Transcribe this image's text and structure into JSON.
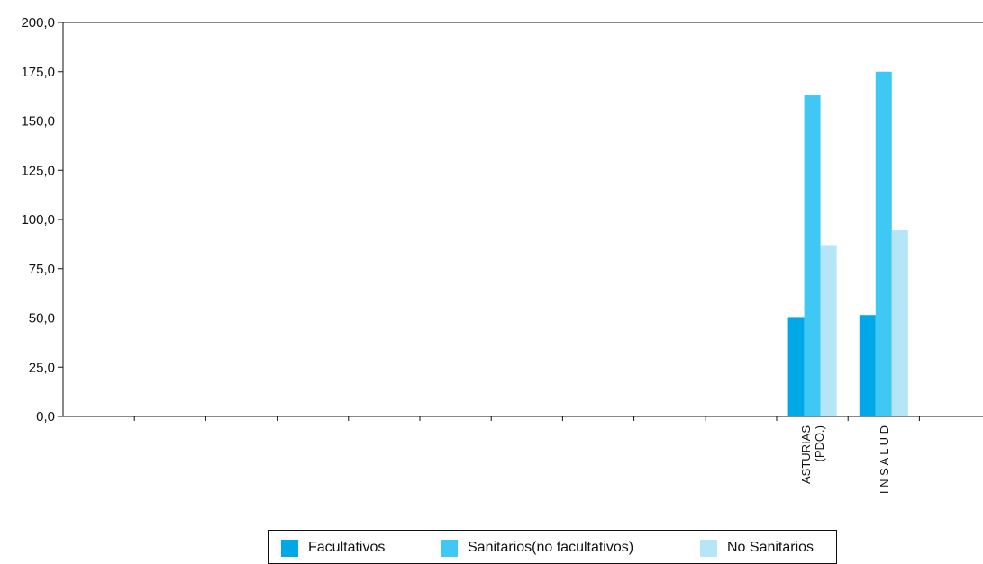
{
  "chart_data": {
    "type": "bar",
    "title": "",
    "xlabel": "",
    "ylabel": "",
    "ylim": [
      0,
      200
    ],
    "yticks": [
      "0,0",
      "25,0",
      "50,0",
      "75,0",
      "100,0",
      "125,0",
      "150,0",
      "175,0",
      "200,0"
    ],
    "grid": false,
    "legend_position": "bottom",
    "categories": [
      {
        "lines": [
          "",
          ""
        ],
        "vertical": false
      },
      {
        "lines": [
          "",
          ""
        ],
        "vertical": false
      },
      {
        "lines": [
          "",
          ""
        ],
        "vertical": false
      },
      {
        "lines": [
          "",
          ""
        ],
        "vertical": false
      },
      {
        "lines": [
          "",
          ""
        ],
        "vertical": false
      },
      {
        "lines": [
          "",
          ""
        ],
        "vertical": false
      },
      {
        "lines": [
          "",
          ""
        ],
        "vertical": false
      },
      {
        "lines": [
          "",
          ""
        ],
        "vertical": false
      },
      {
        "lines": [
          "",
          ""
        ],
        "vertical": false
      },
      {
        "lines": [
          "",
          ""
        ],
        "vertical": false
      },
      {
        "lines": [
          "ASTURIAS",
          "(PDO.)"
        ],
        "vertical": true
      },
      {
        "lines": [
          "I N S A L U D",
          ""
        ],
        "vertical": true
      }
    ],
    "series": [
      {
        "name": "Facultativos",
        "color": "#00a8e8",
        "values": [
          null,
          null,
          null,
          null,
          null,
          null,
          null,
          null,
          null,
          null,
          50.5,
          51.5
        ]
      },
      {
        "name": "Sanitarios(no facultativos)",
        "color": "#40c8f4",
        "values": [
          null,
          null,
          null,
          null,
          null,
          null,
          null,
          null,
          null,
          null,
          163.0,
          175.0
        ]
      },
      {
        "name": "No Sanitarios",
        "color": "#b4e6f8",
        "values": [
          null,
          null,
          null,
          null,
          null,
          null,
          null,
          null,
          null,
          null,
          87.0,
          94.5
        ]
      }
    ]
  }
}
